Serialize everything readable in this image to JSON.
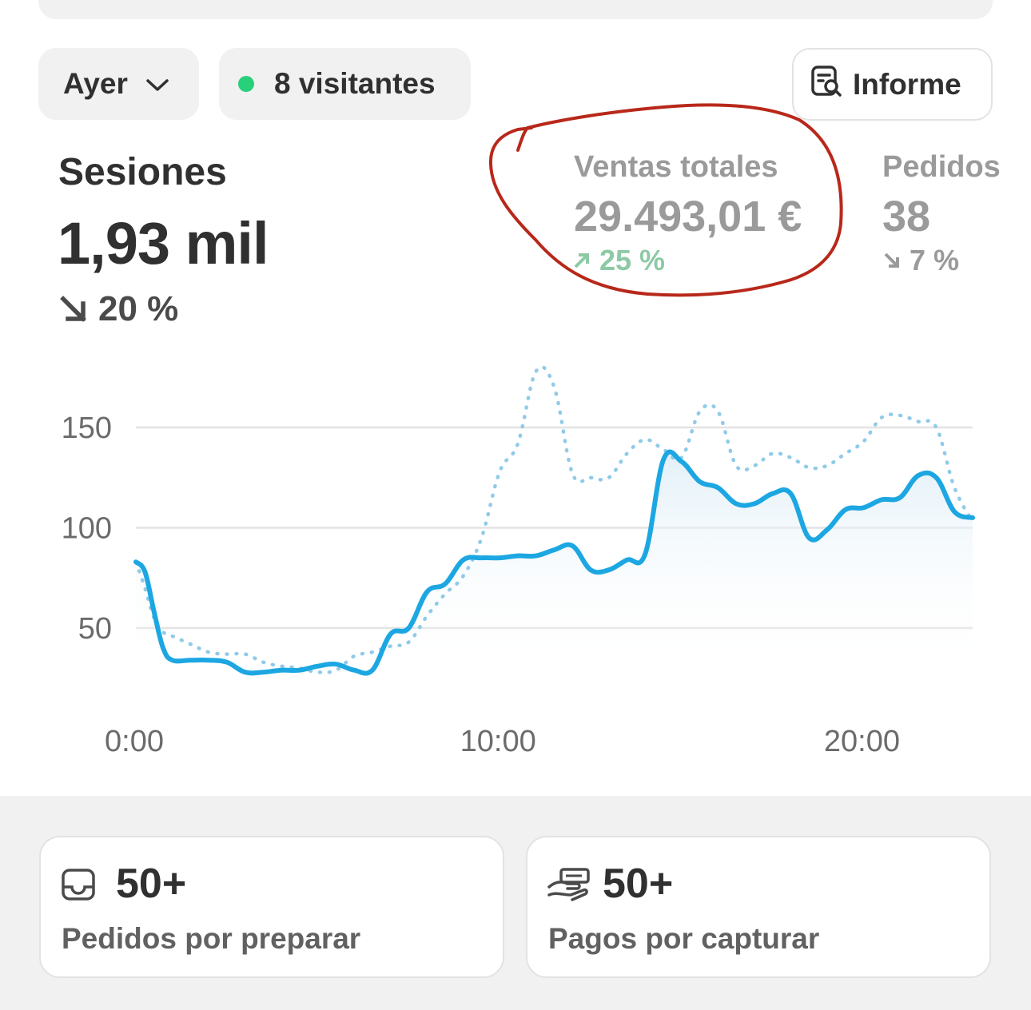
{
  "filters": {
    "date_label": "Ayer",
    "visitors_label": "8 visitantes",
    "visitors_dot_color": "#29d07a",
    "report_label": "Informe"
  },
  "metrics": [
    {
      "label": "Sesiones",
      "value": "1,93 mil",
      "change": "20 %",
      "direction": "down"
    },
    {
      "label": "Ventas totales",
      "value": "29.493,01 €",
      "change": "25 %",
      "direction": "up"
    },
    {
      "label": "Pedidos",
      "value": "38",
      "change": "7 %",
      "direction": "down"
    }
  ],
  "chart_data": {
    "type": "line",
    "x_tick_labels": [
      "0:00",
      "10:00",
      "20:00"
    ],
    "y_tick_labels": [
      "150",
      "100",
      "50"
    ],
    "ylim": [
      15,
      170
    ],
    "xlim": [
      0,
      23
    ],
    "grid": true,
    "x": [
      0,
      0.25,
      0.5,
      0.75,
      1,
      1.5,
      2,
      2.5,
      3,
      3.5,
      4,
      4.5,
      5,
      5.5,
      6,
      6.5,
      7,
      7.5,
      8,
      8.5,
      9,
      9.5,
      10,
      10.5,
      11,
      11.5,
      12,
      12.5,
      13,
      13.5,
      14,
      14.5,
      15,
      15.5,
      16,
      16.5,
      17,
      17.5,
      18,
      18.5,
      19,
      19.5,
      20,
      20.5,
      21,
      21.5,
      22,
      22.5,
      23
    ],
    "series": [
      {
        "style": "solid",
        "color": "#1da7e2",
        "values": [
          83,
          78,
          58,
          40,
          34,
          34,
          34,
          33,
          28,
          28,
          29,
          29,
          31,
          32,
          29,
          29,
          47,
          50,
          68,
          72,
          84,
          85,
          85,
          86,
          86,
          89,
          91,
          79,
          79,
          84,
          87,
          134,
          133,
          123,
          120,
          112,
          112,
          117,
          117,
          95,
          99,
          109,
          110,
          114,
          115,
          126,
          125,
          108,
          105
        ]
      },
      {
        "style": "dotted",
        "color": "#8fcbe8",
        "values": [
          83,
          70,
          55,
          48,
          46,
          42,
          38,
          37,
          37,
          33,
          31,
          30,
          28,
          29,
          36,
          38,
          41,
          43,
          56,
          67,
          76,
          95,
          128,
          142,
          178,
          170,
          127,
          125,
          125,
          137,
          144,
          139,
          135,
          158,
          158,
          131,
          131,
          137,
          135,
          130,
          131,
          137,
          143,
          155,
          156,
          153,
          150,
          120,
          103
        ]
      }
    ]
  },
  "cards": [
    {
      "icon": "inbox-icon",
      "count": "50+",
      "label": "Pedidos por preparar"
    },
    {
      "icon": "hand-payment-icon",
      "count": "50+",
      "label": "Pagos por capturar"
    }
  ]
}
